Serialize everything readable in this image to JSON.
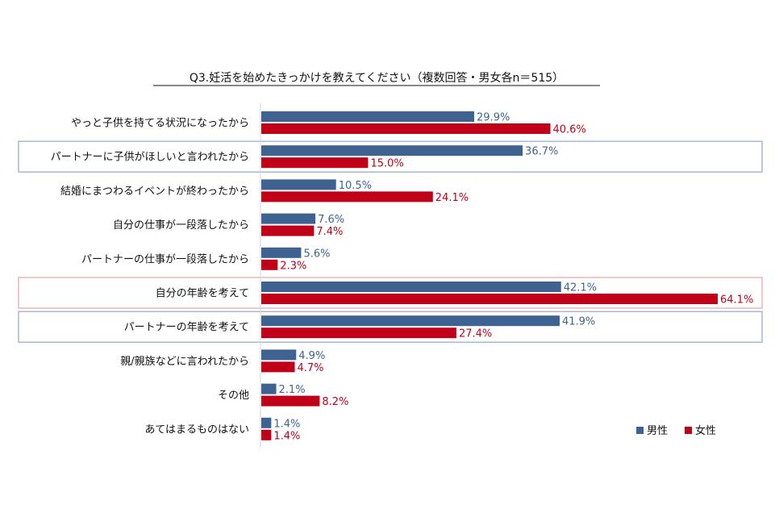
{
  "chart_data": {
    "type": "bar",
    "orientation": "horizontal",
    "title": "Q3.妊活を始めたきっかけを教えてください（複数回答・男女各n＝515）",
    "categories": [
      "やっと子供を持てる状況になったから",
      "パートナーに子供がほしいと言われたから",
      "結婚にまつわるイベントが終わったから",
      "自分の仕事が一段落したから",
      "パートナーの仕事が一段落したから",
      "自分の年齢を考えて",
      "パートナーの年齢を考えて",
      "親/親族などに言われたから",
      "その他",
      "あてはまるものはない"
    ],
    "series": [
      {
        "name": "男性",
        "color": "#3f6391",
        "values": [
          29.9,
          36.7,
          10.5,
          7.6,
          5.6,
          42.1,
          41.9,
          4.9,
          2.1,
          1.4
        ],
        "labels": [
          "29.9%",
          "36.7%",
          "10.5%",
          "7.6%",
          "5.6%",
          "42.1%",
          "41.9%",
          "4.9%",
          "2.1%",
          "1.4%"
        ]
      },
      {
        "name": "女性",
        "color": "#c00018",
        "values": [
          40.6,
          15.0,
          24.1,
          7.4,
          2.3,
          64.1,
          27.4,
          4.7,
          8.2,
          1.4
        ],
        "labels": [
          "40.6%",
          "15.0%",
          "24.1%",
          "7.4%",
          "2.3%",
          "64.1%",
          "27.4%",
          "4.7%",
          "8.2%",
          "1.4%"
        ]
      }
    ],
    "xlim": [
      0,
      64.1
    ],
    "grid": false,
    "legend": {
      "placement": "bottom-right"
    },
    "highlight_boxes": [
      {
        "category_index": 1,
        "color": "#8fa6c8"
      },
      {
        "category_index": 5,
        "color": "#e8a2aa"
      },
      {
        "category_index": 6,
        "color": "#8fa6c8"
      }
    ]
  }
}
